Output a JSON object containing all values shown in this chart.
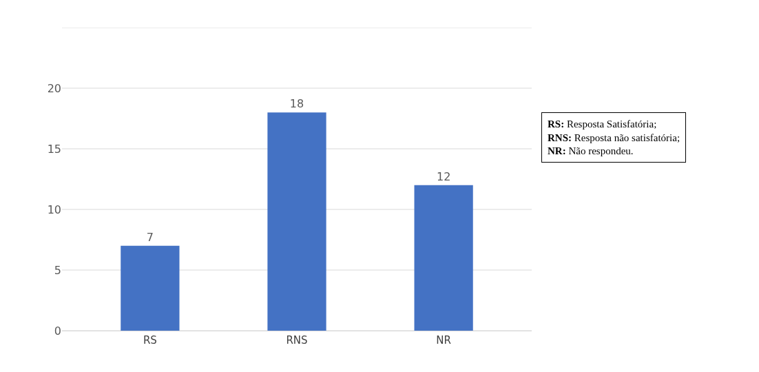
{
  "chart_data": {
    "type": "bar",
    "categories": [
      "RS",
      "RNS",
      "NR"
    ],
    "values": [
      7,
      18,
      12
    ],
    "color": "#4472c4",
    "data_labels": true,
    "ylim": [
      0,
      25
    ],
    "yticks": [
      0,
      5,
      10,
      15,
      20,
      {
        "value": 25,
        "label": null
      }
    ],
    "grid": "y",
    "legend": false,
    "annotations": [
      "RS: Resposta Satisfatória;",
      "RNS: Resposta não satisfatória;",
      "NR: Não respondeu."
    ]
  }
}
